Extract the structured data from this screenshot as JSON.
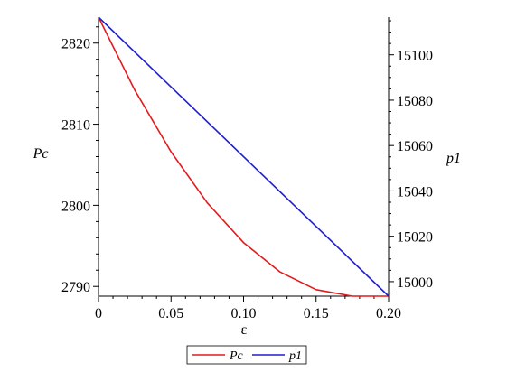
{
  "chart_data": {
    "type": "line",
    "xlabel": "ε",
    "ylabel_left": "Pc",
    "ylabel_right": "p1",
    "xlim": [
      0,
      0.2
    ],
    "ylim_left": [
      2788.8,
      2823.2
    ],
    "ylim_right": [
      14993.6,
      15116.6
    ],
    "x_ticks": [
      0,
      0.05,
      0.1,
      0.15,
      0.2
    ],
    "x_tick_labels": [
      "0",
      "0.05",
      "0.10",
      "0.15",
      "0.20"
    ],
    "y_left_ticks": [
      2790,
      2800,
      2810,
      2820
    ],
    "y_left_tick_labels": [
      "2790",
      "2800",
      "2810",
      "2820"
    ],
    "y_right_ticks": [
      15000,
      15020,
      15040,
      15060,
      15080,
      15100
    ],
    "y_right_tick_labels": [
      "15000",
      "15020",
      "15040",
      "15060",
      "15080",
      "15100"
    ],
    "grid": false,
    "legend": {
      "placement": "bottom-center",
      "entries": [
        {
          "name": "Pc",
          "color": "#e31a1c"
        },
        {
          "name": "p1",
          "color": "#1f1fcf"
        }
      ]
    },
    "series": [
      {
        "name": "Pc",
        "axis": "left",
        "color": "#e31a1c",
        "x": [
          0,
          0.025,
          0.05,
          0.075,
          0.1,
          0.125,
          0.15,
          0.175,
          0.2
        ],
        "y": [
          2823.2,
          2814.2,
          2806.6,
          2800.3,
          2795.4,
          2791.8,
          2789.6,
          2788.8,
          2788.8
        ]
      },
      {
        "name": "p1",
        "axis": "right",
        "color": "#1f1fcf",
        "x": [
          0,
          0.2
        ],
        "y": [
          15116.6,
          14993.6
        ]
      }
    ]
  }
}
